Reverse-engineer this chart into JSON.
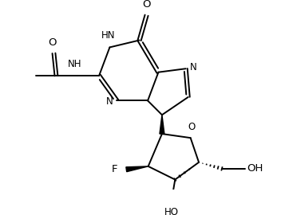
{
  "bg": "#ffffff",
  "lc": "#000000",
  "lw": 1.4,
  "fs": 8.5,
  "xlim": [
    0,
    10
  ],
  "ylim": [
    0,
    7.5
  ]
}
